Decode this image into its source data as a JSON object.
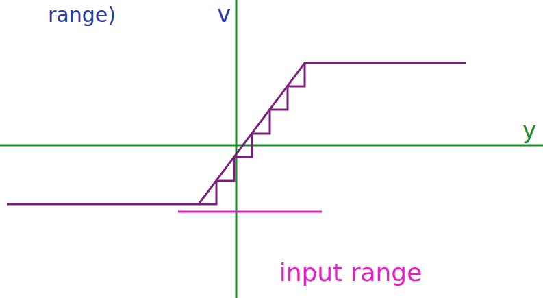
{
  "chart_data": {
    "type": "line",
    "x_label": "y",
    "y_label": "v",
    "annotations": [
      "input range",
      "range)"
    ],
    "xlim": [
      -3.45,
      4.48
    ],
    "ylim": [
      -2.23,
      2.12
    ],
    "tick_labels": false,
    "grid": false,
    "series": [
      {
        "x": [
          -3.35,
          -0.55,
          1.0,
          3.35
        ],
        "values": [
          -0.86,
          -0.86,
          1.2,
          1.2
        ],
        "color": "#7b1f7e",
        "line_style": "solid"
      },
      {
        "x": [
          -0.55,
          -0.29,
          -0.03,
          0.23,
          0.49,
          0.75,
          1.0
        ],
        "values": [
          -0.86,
          -0.52,
          -0.17,
          0.17,
          0.52,
          0.86,
          1.2
        ],
        "color": "#7b1f7e",
        "line_style": "step"
      }
    ]
  }
}
